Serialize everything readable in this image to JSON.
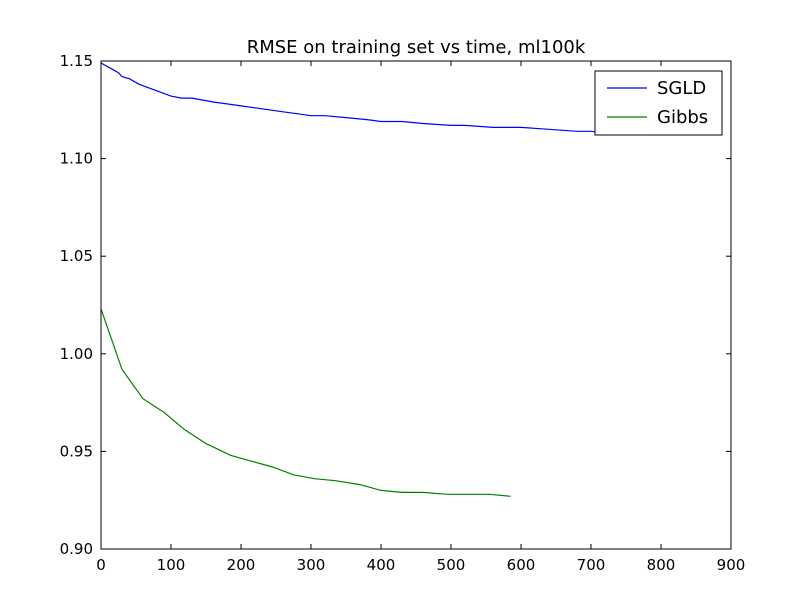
{
  "chart_data": {
    "type": "line",
    "title": "RMSE on training set vs time, ml100k",
    "xlabel": "",
    "ylabel": "",
    "xlim": [
      0,
      900
    ],
    "ylim": [
      0.9,
      1.15
    ],
    "xticks": [
      0,
      100,
      200,
      300,
      400,
      500,
      600,
      700,
      800,
      900
    ],
    "xtick_labels": [
      "0",
      "100",
      "200",
      "300",
      "400",
      "500",
      "600",
      "700",
      "800",
      "900"
    ],
    "yticks": [
      0.9,
      0.95,
      1.0,
      1.05,
      1.1,
      1.15
    ],
    "ytick_labels": [
      "0.90",
      "0.95",
      "1.00",
      "1.05",
      "1.10",
      "1.15"
    ],
    "grid": false,
    "legend_position": "top-right",
    "series": [
      {
        "name": "SGLD",
        "color": "#0000ff",
        "x": [
          0,
          15,
          25,
          30,
          40,
          55,
          70,
          85,
          100,
          115,
          130,
          145,
          160,
          180,
          200,
          220,
          240,
          260,
          280,
          300,
          320,
          350,
          380,
          400,
          430,
          460,
          500,
          520,
          560,
          600,
          640,
          680,
          700,
          720,
          750
        ],
        "y": [
          1.149,
          1.146,
          1.144,
          1.142,
          1.141,
          1.138,
          1.136,
          1.134,
          1.132,
          1.131,
          1.131,
          1.13,
          1.129,
          1.128,
          1.127,
          1.126,
          1.125,
          1.124,
          1.123,
          1.122,
          1.122,
          1.121,
          1.12,
          1.119,
          1.119,
          1.118,
          1.117,
          1.117,
          1.116,
          1.116,
          1.115,
          1.114,
          1.114,
          1.113,
          1.113
        ]
      },
      {
        "name": "Gibbs",
        "color": "#008000",
        "x": [
          0,
          30,
          60,
          90,
          120,
          150,
          185,
          215,
          245,
          275,
          305,
          335,
          370,
          400,
          430,
          460,
          495,
          525,
          555,
          585
        ],
        "y": [
          1.023,
          0.992,
          0.977,
          0.97,
          0.961,
          0.954,
          0.948,
          0.945,
          0.942,
          0.938,
          0.936,
          0.935,
          0.933,
          0.93,
          0.929,
          0.929,
          0.928,
          0.928,
          0.928,
          0.927
        ]
      }
    ]
  }
}
